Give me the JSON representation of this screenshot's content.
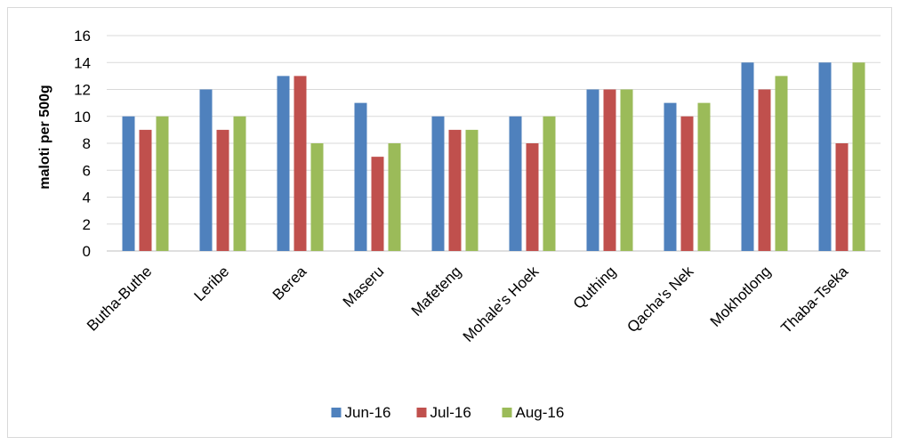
{
  "chart_data": {
    "type": "bar",
    "title": "",
    "xlabel": "",
    "ylabel": "maloti per 500g",
    "ylim": [
      0,
      16
    ],
    "ytick_step": 2,
    "grid": true,
    "legend_position": "bottom",
    "categories": [
      "Butha-Buthe",
      "Leribe",
      "Berea",
      "Maseru",
      "Mafeteng",
      "Mohale's Hoek",
      "Quthing",
      "Qacha's  Nek",
      "Mokhotlong",
      "Thaba-Tseka"
    ],
    "series": [
      {
        "name": "Jun-16",
        "color": "#4f81bd",
        "values": [
          10,
          12,
          13,
          11,
          10,
          10,
          12,
          11,
          14,
          14
        ]
      },
      {
        "name": "Jul-16",
        "color": "#c0504d",
        "values": [
          9,
          9,
          13,
          7,
          9,
          8,
          12,
          10,
          12,
          8
        ]
      },
      {
        "name": "Aug-16",
        "color": "#9bbb59",
        "values": [
          10,
          10,
          8,
          8,
          9,
          10,
          12,
          11,
          13,
          14
        ]
      }
    ]
  }
}
